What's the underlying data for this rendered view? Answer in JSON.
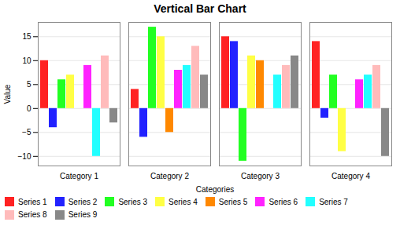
{
  "chart_data": {
    "type": "bar",
    "title": "Vertical Bar Chart",
    "xlabel": "Categories",
    "ylabel": "Value",
    "categories": [
      "Category 1",
      "Category 2",
      "Category 3",
      "Category 4"
    ],
    "series": [
      {
        "name": "Series 1",
        "color": "#FF2222",
        "values": [
          10,
          4,
          15,
          14
        ]
      },
      {
        "name": "Series 2",
        "color": "#2222FF",
        "values": [
          -4,
          -6,
          14,
          -2
        ]
      },
      {
        "name": "Series 3",
        "color": "#22FF22",
        "values": [
          6,
          17,
          -11,
          7
        ]
      },
      {
        "name": "Series 4",
        "color": "#FFFF44",
        "values": [
          7,
          15,
          11,
          -9
        ]
      },
      {
        "name": "Series 5",
        "color": "#FF8800",
        "values": [
          0,
          -5,
          10,
          0
        ]
      },
      {
        "name": "Series 6",
        "color": "#FF22FF",
        "values": [
          9,
          8,
          0,
          6
        ]
      },
      {
        "name": "Series 7",
        "color": "#22FFFF",
        "values": [
          -10,
          9,
          7,
          7
        ]
      },
      {
        "name": "Series 8",
        "color": "#FFBBBB",
        "values": [
          11,
          13,
          9,
          9
        ]
      },
      {
        "name": "Series 9",
        "color": "#888888",
        "values": [
          -3,
          7,
          11,
          -10
        ]
      }
    ],
    "ylim": [
      -12,
      18
    ],
    "yticks": [
      -10,
      -5,
      0,
      5,
      10,
      15
    ],
    "grid": true,
    "legend": "bottom"
  }
}
